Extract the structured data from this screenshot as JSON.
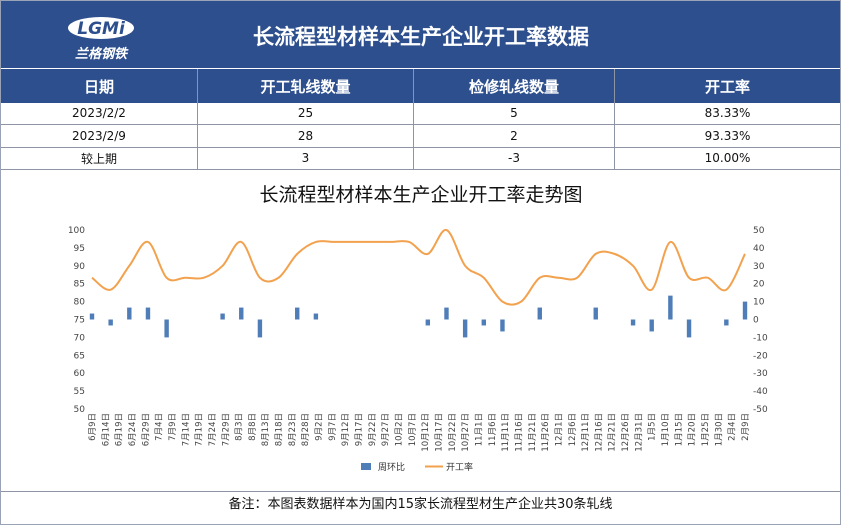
{
  "header": {
    "title": "长流程型材样本生产企业开工率数据",
    "logo_brand": "LGMi",
    "logo_name": "兰格钢铁"
  },
  "table": {
    "columns": [
      "日期",
      "开工轧线数量",
      "检修轧线数量",
      "开工率"
    ],
    "rows": [
      [
        "2023/2/2",
        "25",
        "5",
        "83.33%"
      ],
      [
        "2023/2/9",
        "28",
        "2",
        "93.33%"
      ],
      [
        "较上期",
        "3",
        "-3",
        "10.00%"
      ]
    ]
  },
  "chart_data": {
    "type": "combo",
    "title": "长流程型材样本生产企业开工率走势图",
    "x": [
      "6月9日",
      "6月16日",
      "6月23日",
      "6月30日",
      "7月7日",
      "7月14日",
      "7月21日",
      "7月28日",
      "8月4日",
      "8月11日",
      "8月18日",
      "8月25日",
      "9月1日",
      "9月8日",
      "9月15日",
      "9月22日",
      "9月29日",
      "10月6日",
      "10月13日",
      "10月20日",
      "10月27日",
      "11月3日",
      "11月10日",
      "11月17日",
      "11月24日",
      "12月1日",
      "12月8日",
      "12月15日",
      "12月22日",
      "12月29日",
      "1月5日",
      "1月12日",
      "1月19日",
      "1月26日",
      "2月2日",
      "2月9日"
    ],
    "xticks": [
      "6月9日",
      "6月14日",
      "6月19日",
      "6月24日",
      "6月29日",
      "7月4日",
      "7月9日",
      "7月14日",
      "7月19日",
      "7月24日",
      "7月29日",
      "8月3日",
      "8月8日",
      "8月13日",
      "8月18日",
      "8月23日",
      "8月28日",
      "9月2日",
      "9月7日",
      "9月12日",
      "9月17日",
      "9月22日",
      "9月27日",
      "10月2日",
      "10月7日",
      "10月12日",
      "10月17日",
      "10月22日",
      "10月27日",
      "11月1日",
      "11月6日",
      "11月11日",
      "11月16日",
      "11月21日",
      "11月26日",
      "12月1日",
      "12月6日",
      "12月11日",
      "12月16日",
      "12月21日",
      "12月26日",
      "12月31日",
      "1月5日",
      "1月10日",
      "1月15日",
      "1月20日",
      "1月25日",
      "1月30日",
      "2月4日",
      "2月9日"
    ],
    "series": [
      {
        "name": "周环比",
        "type": "bar",
        "axis": "y2",
        "color": "#4f7db8",
        "values": [
          3.33,
          -3.33,
          6.67,
          6.67,
          -10,
          0,
          0,
          3.33,
          6.67,
          -10,
          0,
          6.67,
          3.33,
          0,
          0,
          0,
          0,
          0,
          -3.33,
          6.67,
          -10,
          -3.33,
          -6.67,
          0,
          6.67,
          0,
          0,
          6.67,
          0,
          -3.33,
          -6.67,
          13.33,
          -10,
          0,
          -3.33,
          10
        ]
      },
      {
        "name": "开工率",
        "type": "line",
        "axis": "y",
        "color": "#f2a24e",
        "values": [
          86.67,
          83.33,
          90,
          96.67,
          86.67,
          86.67,
          86.67,
          90,
          96.67,
          86.67,
          86.67,
          93.33,
          96.67,
          96.67,
          96.67,
          96.67,
          96.67,
          96.67,
          93.33,
          100,
          90,
          86.67,
          80,
          80,
          86.67,
          86.67,
          86.67,
          93.33,
          93.33,
          90,
          83.33,
          96.67,
          86.67,
          86.67,
          83.33,
          93.33
        ]
      }
    ],
    "ylim": [
      50,
      100
    ],
    "yticks": [
      50,
      55,
      60,
      65,
      70,
      75,
      80,
      85,
      90,
      95,
      100
    ],
    "y2lim": [
      -50,
      50
    ],
    "y2ticks": [
      -50,
      -40,
      -30,
      -20,
      -10,
      0,
      10,
      20,
      30,
      40,
      50
    ],
    "legend": "bottom"
  },
  "note": "备注：本图表数据样本为国内15家长流程型材生产企业共30条轧线"
}
